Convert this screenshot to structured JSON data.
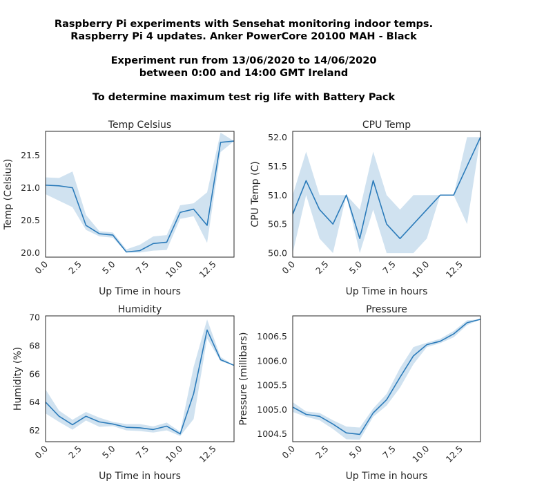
{
  "suptitle": {
    "line1": "Raspberry Pi experiments with Sensehat monitoring indoor temps.",
    "line2": "Raspberry Pi 4 updates. Anker PowerCore 20100 MAH - Black",
    "line3": "Experiment run from 13/06/2020 to 14/06/2020",
    "line4": "between 0:00 and 14:00 GMT Ireland",
    "line5": "To determine maximum test rig life with Battery Pack"
  },
  "colors": {
    "line": "#2b7bba",
    "band": "#2b7bba"
  },
  "chart_data": [
    {
      "type": "line",
      "title": "Temp Celsius",
      "xlabel": "Up Time in hours",
      "ylabel": "Temp (Celsius)",
      "xlim": [
        0,
        14
      ],
      "ylim": [
        19.93,
        21.87
      ],
      "xticks": [
        0,
        2.5,
        5,
        7.5,
        10,
        12.5
      ],
      "xtick_labels": [
        "0.0",
        "2.5",
        "5.0",
        "7.5",
        "10.0",
        "12.5"
      ],
      "yticks": [
        20.0,
        20.5,
        21.0,
        21.5
      ],
      "ytick_labels": [
        "20.0",
        "20.5",
        "21.0",
        "21.5"
      ],
      "x": [
        0,
        1,
        2,
        3,
        4,
        5,
        6,
        7,
        8,
        9,
        10,
        11,
        12,
        13,
        14
      ],
      "y": [
        21.04,
        21.03,
        21.0,
        20.42,
        20.29,
        20.27,
        20.01,
        20.03,
        20.14,
        20.16,
        20.62,
        20.67,
        20.42,
        21.7,
        21.72
      ],
      "ci_low": [
        20.9,
        20.8,
        20.7,
        20.35,
        20.25,
        20.23,
        20.0,
        20.0,
        20.03,
        20.04,
        20.52,
        20.56,
        20.15,
        21.55,
        21.72
      ],
      "ci_high": [
        21.16,
        21.15,
        21.25,
        20.58,
        20.33,
        20.31,
        20.05,
        20.12,
        20.25,
        20.27,
        20.73,
        20.76,
        20.93,
        21.85,
        21.72
      ]
    },
    {
      "type": "line",
      "title": "CPU Temp",
      "xlabel": "Up Time in hours",
      "ylabel": "CPU Temp (C)",
      "xlim": [
        0,
        14
      ],
      "ylim": [
        49.93,
        52.1
      ],
      "xticks": [
        0,
        2.5,
        5,
        7.5,
        10,
        12.5
      ],
      "xtick_labels": [
        "0.0",
        "2.5",
        "5.0",
        "7.5",
        "10.0",
        "12.5"
      ],
      "yticks": [
        50.0,
        50.5,
        51.0,
        51.5,
        52.0
      ],
      "ytick_labels": [
        "50.0",
        "50.5",
        "51.0",
        "51.5",
        "52.0"
      ],
      "x": [
        0,
        1,
        2,
        3,
        4,
        5,
        6,
        7,
        8,
        9,
        10,
        11,
        12,
        13,
        14
      ],
      "y": [
        50.67,
        51.25,
        50.75,
        50.5,
        51.0,
        50.25,
        51.25,
        50.5,
        50.25,
        50.5,
        50.75,
        51.0,
        51.0,
        51.5,
        52.0
      ],
      "ci_low": [
        50.0,
        51.0,
        50.25,
        50.0,
        51.0,
        50.0,
        50.75,
        50.0,
        50.0,
        50.0,
        50.25,
        51.0,
        51.0,
        50.5,
        52.0
      ],
      "ci_high": [
        51.0,
        51.75,
        51.0,
        51.0,
        51.0,
        50.75,
        51.75,
        51.0,
        50.75,
        51.0,
        51.0,
        51.0,
        51.0,
        52.0,
        52.0
      ]
    },
    {
      "type": "line",
      "title": "Humidity",
      "xlabel": "Up Time in hours",
      "ylabel": "Humidity (%)",
      "xlim": [
        0,
        14
      ],
      "ylim": [
        61.2,
        70.1
      ],
      "xticks": [
        0,
        2.5,
        5,
        7.5,
        10,
        12.5
      ],
      "xtick_labels": [
        "0.0",
        "2.5",
        "5.0",
        "7.5",
        "10.0",
        "12.5"
      ],
      "yticks": [
        62,
        64,
        66,
        68,
        70
      ],
      "ytick_labels": [
        "62",
        "64",
        "66",
        "68",
        "70"
      ],
      "x": [
        0,
        1,
        2,
        3,
        4,
        5,
        6,
        7,
        8,
        9,
        10,
        11,
        12,
        13,
        14
      ],
      "y": [
        64.0,
        63.0,
        62.4,
        63.0,
        62.6,
        62.45,
        62.22,
        62.18,
        62.06,
        62.3,
        61.75,
        64.6,
        69.1,
        67.0,
        66.6
      ],
      "ci_low": [
        63.2,
        62.6,
        62.05,
        62.7,
        62.25,
        62.3,
        62.0,
        61.95,
        61.85,
        62.0,
        61.6,
        62.8,
        68.5,
        66.9,
        66.6
      ],
      "ci_high": [
        64.9,
        63.4,
        62.75,
        63.3,
        62.9,
        62.6,
        62.45,
        62.45,
        62.28,
        62.55,
        61.9,
        66.5,
        69.85,
        67.2,
        66.6
      ]
    },
    {
      "type": "line",
      "title": "Pressure",
      "xlabel": "Up Time in hours",
      "ylabel": "Pressure (millibars)",
      "xlim": [
        0,
        14
      ],
      "ylim": [
        1004.34,
        1006.92
      ],
      "xticks": [
        0,
        2.5,
        5,
        7.5,
        10,
        12.5
      ],
      "xtick_labels": [
        "0.0",
        "2.5",
        "5.0",
        "7.5",
        "10.0",
        "12.5"
      ],
      "yticks": [
        1004.5,
        1005.0,
        1005.5,
        1006.0,
        1006.5
      ],
      "ytick_labels": [
        "1004.5",
        "1005.0",
        "1005.5",
        "1006.0",
        "1006.5"
      ],
      "x": [
        0,
        1,
        2,
        3,
        4,
        5,
        6,
        7,
        8,
        9,
        10,
        11,
        12,
        13,
        14
      ],
      "y": [
        1005.05,
        1004.9,
        1004.86,
        1004.7,
        1004.52,
        1004.49,
        1004.93,
        1005.2,
        1005.66,
        1006.1,
        1006.33,
        1006.4,
        1006.55,
        1006.78,
        1006.85
      ],
      "ci_low": [
        1004.95,
        1004.85,
        1004.78,
        1004.6,
        1004.39,
        1004.38,
        1004.85,
        1005.08,
        1005.45,
        1005.93,
        1006.28,
        1006.36,
        1006.48,
        1006.73,
        1006.85
      ],
      "ci_high": [
        1005.15,
        1004.96,
        1004.93,
        1004.78,
        1004.65,
        1004.63,
        1005.02,
        1005.32,
        1005.85,
        1006.28,
        1006.37,
        1006.45,
        1006.61,
        1006.83,
        1006.85
      ]
    }
  ]
}
